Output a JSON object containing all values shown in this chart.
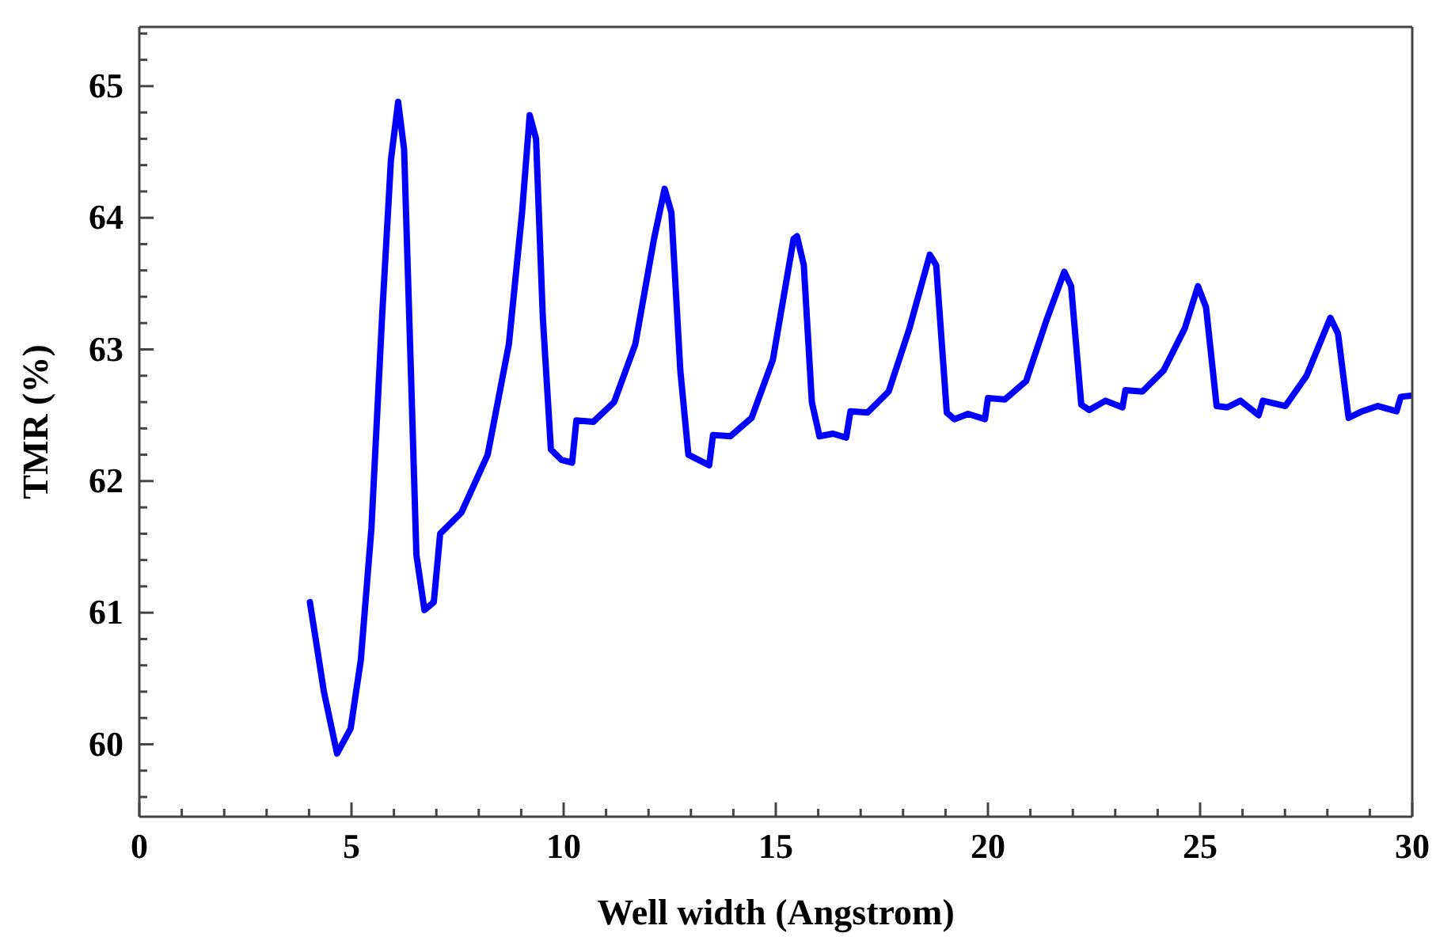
{
  "chart_data": {
    "type": "line",
    "xlabel": "Well width (Angstrom)",
    "ylabel": "TMR (%)",
    "xlim": [
      0,
      30
    ],
    "ylim": [
      59.45,
      65.45
    ],
    "xticks": [
      0,
      {
        "value": 1,
        "label": null
      },
      {
        "value": 2,
        "label": null
      },
      {
        "value": 3,
        "label": null
      },
      {
        "value": 4,
        "label": null
      },
      5,
      {
        "value": 6,
        "label": null
      },
      {
        "value": 7,
        "label": null
      },
      {
        "value": 8,
        "label": null
      },
      {
        "value": 9,
        "label": null
      },
      10,
      {
        "value": 11,
        "label": null
      },
      {
        "value": 12,
        "label": null
      },
      {
        "value": 13,
        "label": null
      },
      {
        "value": 14,
        "label": null
      },
      15,
      {
        "value": 16,
        "label": null
      },
      {
        "value": 17,
        "label": null
      },
      {
        "value": 18,
        "label": null
      },
      {
        "value": 19,
        "label": null
      },
      20,
      {
        "value": 21,
        "label": null
      },
      {
        "value": 22,
        "label": null
      },
      {
        "value": 23,
        "label": null
      },
      {
        "value": 24,
        "label": null
      },
      25,
      {
        "value": 26,
        "label": null
      },
      {
        "value": 27,
        "label": null
      },
      {
        "value": 28,
        "label": null
      },
      {
        "value": 29,
        "label": null
      },
      30
    ],
    "yticks": [
      {
        "value": 59.6,
        "label": null
      },
      {
        "value": 59.8,
        "label": null
      },
      60,
      {
        "value": 60.2,
        "label": null
      },
      {
        "value": 60.4,
        "label": null
      },
      {
        "value": 60.6,
        "label": null
      },
      {
        "value": 60.8,
        "label": null
      },
      61,
      {
        "value": 61.2,
        "label": null
      },
      {
        "value": 61.4,
        "label": null
      },
      {
        "value": 61.6,
        "label": null
      },
      {
        "value": 61.8,
        "label": null
      },
      62,
      {
        "value": 62.2,
        "label": null
      },
      {
        "value": 62.4,
        "label": null
      },
      {
        "value": 62.6,
        "label": null
      },
      {
        "value": 62.8,
        "label": null
      },
      63,
      {
        "value": 63.2,
        "label": null
      },
      {
        "value": 63.4,
        "label": null
      },
      {
        "value": 63.6,
        "label": null
      },
      {
        "value": 63.8,
        "label": null
      },
      64,
      {
        "value": 64.2,
        "label": null
      },
      {
        "value": 64.4,
        "label": null
      },
      {
        "value": 64.6,
        "label": null
      },
      {
        "value": 64.8,
        "label": null
      },
      65,
      {
        "value": 65.2,
        "label": null
      },
      {
        "value": 65.4,
        "label": null
      }
    ],
    "marker": "none",
    "line_style": "solid",
    "series": [
      {
        "color": "#0000ff",
        "x": [
          4.02,
          4.35,
          4.66,
          4.98,
          5.22,
          5.47,
          5.72,
          5.93,
          6.1,
          6.24,
          6.4,
          6.53,
          6.72,
          6.94,
          7.09,
          7.59,
          8.21,
          8.71,
          9.02,
          9.2,
          9.35,
          9.51,
          9.7,
          9.95,
          10.2,
          10.3,
          10.7,
          11.19,
          11.69,
          12.13,
          12.38,
          12.54,
          12.75,
          12.94,
          13.43,
          13.52,
          13.93,
          14.43,
          14.93,
          15.42,
          15.5,
          15.66,
          15.85,
          16.03,
          16.35,
          16.66,
          16.76,
          17.16,
          17.66,
          18.15,
          18.63,
          18.78,
          19.03,
          19.21,
          19.53,
          19.93,
          20.0,
          20.4,
          20.9,
          21.4,
          21.8,
          21.96,
          22.2,
          22.39,
          22.77,
          23.17,
          23.24,
          23.64,
          24.14,
          24.64,
          24.95,
          25.14,
          25.39,
          25.64,
          25.95,
          26.38,
          26.48,
          27.01,
          27.51,
          28.07,
          28.25,
          28.5,
          28.82,
          29.19,
          29.63,
          29.73,
          30.0
        ],
        "values": [
          61.08,
          60.4,
          59.93,
          60.12,
          60.64,
          61.64,
          63.24,
          64.44,
          64.88,
          64.52,
          62.84,
          61.44,
          61.02,
          61.08,
          61.6,
          61.76,
          62.2,
          63.04,
          64.04,
          64.78,
          64.6,
          63.24,
          62.24,
          62.16,
          62.14,
          62.46,
          62.45,
          62.6,
          63.04,
          63.84,
          64.22,
          64.04,
          62.84,
          62.2,
          62.12,
          62.35,
          62.34,
          62.48,
          62.92,
          63.84,
          63.86,
          63.64,
          62.6,
          62.34,
          62.36,
          62.33,
          62.53,
          62.52,
          62.68,
          63.16,
          63.72,
          63.64,
          62.52,
          62.47,
          62.51,
          62.47,
          62.63,
          62.62,
          62.76,
          63.24,
          63.59,
          63.48,
          62.58,
          62.54,
          62.61,
          62.56,
          62.69,
          62.68,
          62.84,
          63.16,
          63.48,
          63.32,
          62.57,
          62.56,
          62.61,
          62.5,
          62.61,
          62.57,
          62.8,
          63.24,
          63.12,
          62.48,
          62.53,
          62.57,
          62.53,
          62.64,
          62.65
        ]
      }
    ]
  }
}
